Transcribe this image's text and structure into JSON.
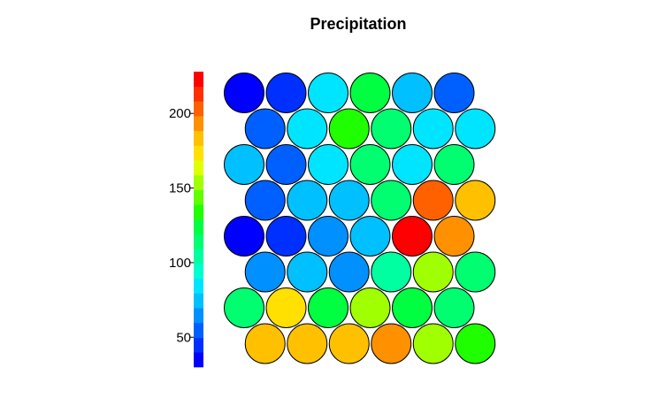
{
  "chart_data": {
    "type": "heatmap",
    "subtype": "som-hexagonal-property-map",
    "title": "Precipitation",
    "grid": {
      "rows": 8,
      "cols": 6,
      "cell_shape": "circle",
      "layout": "hexagonal"
    },
    "values": [
      [
        30,
        42,
        85,
        125,
        72,
        52
      ],
      [
        55,
        85,
        135,
        110,
        88,
        85
      ],
      [
        70,
        55,
        88,
        110,
        88,
        112
      ],
      [
        55,
        72,
        72,
        112,
        200,
        180
      ],
      [
        35,
        40,
        68,
        72,
        225,
        192
      ],
      [
        60,
        72,
        68,
        100,
        150,
        112
      ],
      [
        112,
        170,
        125,
        150,
        128,
        110
      ],
      [
        180,
        180,
        180,
        192,
        150,
        130
      ]
    ],
    "colorbar": {
      "min": 30,
      "max": 228,
      "ticks": [
        50,
        100,
        150,
        200
      ],
      "colors": [
        "#0000ff",
        "#0030ff",
        "#0060ff",
        "#0090ff",
        "#00c0ff",
        "#00e5ff",
        "#00ffd0",
        "#00ffa0",
        "#00ff70",
        "#00ff40",
        "#20ff00",
        "#60ff00",
        "#a0ff00",
        "#e0ff00",
        "#ffe000",
        "#ffc000",
        "#ff9000",
        "#ff6000",
        "#ff3000",
        "#ff0000"
      ]
    }
  }
}
